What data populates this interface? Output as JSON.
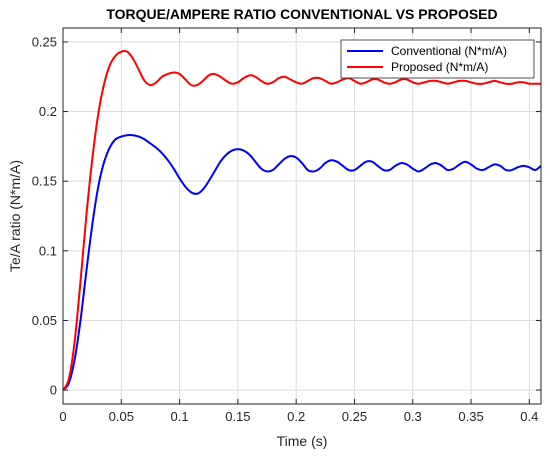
{
  "chart_data": {
    "type": "line",
    "title": "TORQUE/AMPERE RATIO CONVENTIONAL VS PROPOSED",
    "xlabel": "Time (s)",
    "ylabel": "Te/A ratio (N*m/A)",
    "xlim": [
      0,
      0.41
    ],
    "ylim": [
      -0.01,
      0.26
    ],
    "xticks": [
      0,
      0.05,
      0.1,
      0.15,
      0.2,
      0.25,
      0.3,
      0.35,
      0.4
    ],
    "xtick_labels": [
      "0",
      "0.05",
      "0.1",
      "0.15",
      "0.2",
      "0.25",
      "0.3",
      "0.35",
      "0.4"
    ],
    "yticks": [
      0,
      0.05,
      0.1,
      0.15,
      0.2,
      0.25
    ],
    "ytick_labels": [
      "0",
      "0.05",
      "0.1",
      "0.15",
      "0.2",
      "0.25"
    ],
    "grid": true,
    "legend_position": "top-right",
    "series": [
      {
        "name": "Conventional (N*m/A)",
        "color": "#0000ff",
        "x": [
          0,
          0.005,
          0.01,
          0.015,
          0.02,
          0.025,
          0.03,
          0.035,
          0.04,
          0.045,
          0.05,
          0.055,
          0.06,
          0.065,
          0.07,
          0.075,
          0.08,
          0.085,
          0.09,
          0.095,
          0.1,
          0.105,
          0.11,
          0.115,
          0.12,
          0.125,
          0.13,
          0.135,
          0.14,
          0.145,
          0.15,
          0.155,
          0.16,
          0.165,
          0.17,
          0.175,
          0.18,
          0.185,
          0.19,
          0.195,
          0.2,
          0.205,
          0.21,
          0.215,
          0.22,
          0.225,
          0.23,
          0.235,
          0.24,
          0.245,
          0.25,
          0.255,
          0.26,
          0.265,
          0.27,
          0.275,
          0.28,
          0.285,
          0.29,
          0.295,
          0.3,
          0.305,
          0.31,
          0.315,
          0.32,
          0.325,
          0.33,
          0.335,
          0.34,
          0.345,
          0.35,
          0.355,
          0.36,
          0.365,
          0.37,
          0.375,
          0.38,
          0.385,
          0.39,
          0.395,
          0.4,
          0.405,
          0.41
        ],
        "y": [
          0,
          0.005,
          0.022,
          0.05,
          0.085,
          0.118,
          0.145,
          0.163,
          0.174,
          0.18,
          0.182,
          0.183,
          0.183,
          0.182,
          0.18,
          0.177,
          0.174,
          0.17,
          0.165,
          0.159,
          0.152,
          0.146,
          0.142,
          0.141,
          0.144,
          0.15,
          0.157,
          0.164,
          0.169,
          0.172,
          0.173,
          0.172,
          0.169,
          0.164,
          0.159,
          0.157,
          0.158,
          0.162,
          0.166,
          0.168,
          0.167,
          0.163,
          0.158,
          0.157,
          0.159,
          0.163,
          0.165,
          0.164,
          0.161,
          0.158,
          0.158,
          0.161,
          0.164,
          0.164,
          0.161,
          0.158,
          0.158,
          0.161,
          0.163,
          0.162,
          0.159,
          0.157,
          0.159,
          0.162,
          0.163,
          0.161,
          0.158,
          0.159,
          0.162,
          0.164,
          0.162,
          0.159,
          0.158,
          0.16,
          0.162,
          0.161,
          0.158,
          0.158,
          0.16,
          0.161,
          0.16,
          0.158,
          0.161
        ]
      },
      {
        "name": "Proposed (N*m/A)",
        "color": "#ff0000",
        "x": [
          0,
          0.005,
          0.01,
          0.015,
          0.02,
          0.025,
          0.03,
          0.035,
          0.04,
          0.045,
          0.05,
          0.055,
          0.06,
          0.065,
          0.07,
          0.075,
          0.08,
          0.085,
          0.09,
          0.095,
          0.1,
          0.105,
          0.11,
          0.115,
          0.12,
          0.125,
          0.13,
          0.135,
          0.14,
          0.145,
          0.15,
          0.155,
          0.16,
          0.165,
          0.17,
          0.175,
          0.18,
          0.185,
          0.19,
          0.195,
          0.2,
          0.205,
          0.21,
          0.215,
          0.22,
          0.225,
          0.23,
          0.235,
          0.24,
          0.245,
          0.25,
          0.255,
          0.26,
          0.265,
          0.27,
          0.275,
          0.28,
          0.285,
          0.29,
          0.295,
          0.3,
          0.305,
          0.31,
          0.315,
          0.32,
          0.325,
          0.33,
          0.335,
          0.34,
          0.345,
          0.35,
          0.355,
          0.36,
          0.365,
          0.37,
          0.375,
          0.38,
          0.385,
          0.39,
          0.395,
          0.4,
          0.405,
          0.41
        ],
        "y": [
          0,
          0.008,
          0.035,
          0.078,
          0.125,
          0.165,
          0.197,
          0.219,
          0.233,
          0.24,
          0.243,
          0.243,
          0.238,
          0.23,
          0.222,
          0.219,
          0.221,
          0.225,
          0.227,
          0.228,
          0.227,
          0.223,
          0.219,
          0.219,
          0.222,
          0.226,
          0.227,
          0.225,
          0.222,
          0.22,
          0.221,
          0.224,
          0.226,
          0.225,
          0.222,
          0.22,
          0.221,
          0.224,
          0.225,
          0.223,
          0.221,
          0.22,
          0.222,
          0.224,
          0.224,
          0.222,
          0.22,
          0.221,
          0.223,
          0.224,
          0.222,
          0.22,
          0.221,
          0.223,
          0.223,
          0.221,
          0.22,
          0.221,
          0.223,
          0.223,
          0.221,
          0.22,
          0.221,
          0.222,
          0.222,
          0.221,
          0.22,
          0.221,
          0.222,
          0.222,
          0.221,
          0.22,
          0.22,
          0.221,
          0.222,
          0.221,
          0.22,
          0.22,
          0.221,
          0.221,
          0.22,
          0.22,
          0.22
        ]
      }
    ]
  }
}
